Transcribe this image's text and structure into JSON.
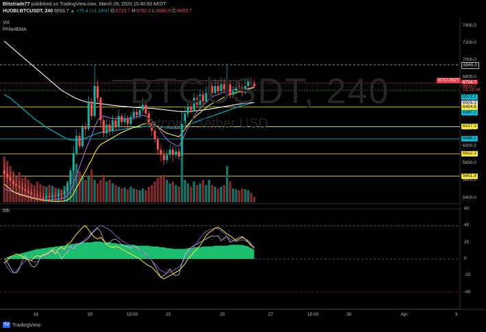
{
  "header": {
    "author": "Blitztrade77",
    "publish_text": "published on TradingView.com, March 26, 2020 15:40:50 AEDT",
    "symbol_line": "HUOBI:BTCUSDT, 240",
    "last_price": "6693.7",
    "change": "▲ +75.4 (+1.14%)",
    "o_label": "O:",
    "o_value": "6723.7",
    "h_label": "H:",
    "h_value": "6762.0",
    "l_label": "L:",
    "l_value": "6680.0",
    "c_label": "C:",
    "c_value": "6693.7"
  },
  "watermark": {
    "symbol": "BTCUSDT, 240",
    "name": "Bitcoin / Tether USD"
  },
  "legend": {
    "volume": "Vol",
    "ema": "Phila4EMA",
    "oscillator": "btb"
  },
  "price_axis": {
    "labels": [
      {
        "value": 7400,
        "text": "7400.0"
      },
      {
        "value": 7200,
        "text": "7200.0"
      },
      {
        "value": 7000,
        "text": "7000.0"
      },
      {
        "value": 6800,
        "text": "6800.0"
      },
      {
        "value": 6200,
        "text": "6200.0"
      },
      {
        "value": 6000,
        "text": "6000.0"
      },
      {
        "value": 5800,
        "text": "5800.0"
      },
      {
        "value": 5600,
        "text": "5600.0"
      },
      {
        "value": 5400,
        "text": "5400.0"
      }
    ],
    "tags": [
      {
        "value": 6945.0,
        "text": "6945.0",
        "bg": "#000000",
        "fg": "#e0e0e0",
        "border": "#bbbbbb"
      },
      {
        "value": 6734.7,
        "text": "6734.7",
        "bg": "#f23645",
        "fg": "#ffffff"
      },
      {
        "value": 6693.7,
        "text": "6693.7",
        "bg": "#000000",
        "fg": "#ff5252"
      },
      {
        "value": 6650,
        "text": "03:19:16",
        "bg": "#000000",
        "fg": "#ff5252"
      },
      {
        "value": 6572.2,
        "text": "6572.2",
        "bg": "#00bcd4",
        "fg": "#000000"
      },
      {
        "value": 6503.3,
        "text": "6503.3",
        "bg": "#e6e6e6",
        "fg": "#000000"
      },
      {
        "value": 6454.6,
        "text": "6454.6",
        "bg": "#ffeb3b",
        "fg": "#000000"
      },
      {
        "value": 6387.7,
        "text": "6387.7",
        "bg": "#00bcd4",
        "fg": "#000000"
      },
      {
        "value": 6227.3,
        "text": "6227.3",
        "bg": "#ffeb3b",
        "fg": "#000000"
      },
      {
        "value": 6086.1,
        "text": "6086.1",
        "bg": "#00bcd4",
        "fg": "#000000"
      },
      {
        "value": 5912.2,
        "text": "5912.2",
        "bg": "#ffeb3b",
        "fg": "#000000"
      },
      {
        "value": 5651.9,
        "text": "5651.9",
        "bg": "#ffeb3b",
        "fg": "#000000"
      }
    ],
    "symbol_tag": {
      "value": 6760,
      "text": "BTCUSDT",
      "bg": "#f23645",
      "fg": "#ffffff"
    }
  },
  "osc_axis": {
    "labels": [
      {
        "value": 60,
        "text": "60"
      },
      {
        "value": 40,
        "text": "40"
      },
      {
        "value": 20,
        "text": "20"
      },
      {
        "value": 0,
        "text": "0"
      },
      {
        "value": -20,
        "text": "-20"
      },
      {
        "value": -40,
        "text": "-40"
      }
    ]
  },
  "time_axis": [
    {
      "bar": 11,
      "text": "18"
    },
    {
      "bar": 29,
      "text": "20"
    },
    {
      "bar": 42,
      "text": "15:00"
    },
    {
      "bar": 55,
      "text": "23"
    },
    {
      "bar": 73,
      "text": "25"
    },
    {
      "bar": 89,
      "text": "27"
    },
    {
      "bar": 102,
      "text": "15:00"
    },
    {
      "bar": 115,
      "text": "30"
    },
    {
      "bar": 133,
      "text": "Apr"
    },
    {
      "bar": 151,
      "text": "3"
    }
  ],
  "footer": {
    "brand": "TradingView"
  },
  "colors": {
    "up": "#26a69a",
    "down": "#ef5350",
    "ema_white": "#ffffff",
    "ema_yellow": "#ffeb3b",
    "ema_cyan": "#00bcd4",
    "ema_purple": "#9c6bd8",
    "osc_fill": "#1fd17a"
  },
  "chart_data": {
    "type": "candlestick",
    "price_range": [
      5350,
      7500
    ],
    "osc_range": [
      -60,
      65
    ],
    "candles": [
      [
        5720,
        5680,
        5800,
        5600,
        5300
      ],
      [
        5680,
        5640,
        5760,
        5580,
        4800
      ],
      [
        5640,
        5600,
        5700,
        5540,
        4200
      ],
      [
        5600,
        5560,
        5680,
        5500,
        3600
      ],
      [
        5560,
        5540,
        5620,
        5480,
        3000
      ],
      [
        5540,
        5520,
        5600,
        5460,
        3500
      ],
      [
        5520,
        5500,
        5580,
        5440,
        2800
      ],
      [
        5500,
        5480,
        5560,
        5420,
        3000
      ],
      [
        5480,
        5460,
        5540,
        5400,
        2600
      ],
      [
        5460,
        5440,
        5520,
        5380,
        2200
      ],
      [
        5440,
        5430,
        5500,
        5380,
        2000
      ],
      [
        5430,
        5420,
        5480,
        5370,
        2400
      ],
      [
        5420,
        5410,
        5470,
        5360,
        2100
      ],
      [
        5410,
        5400,
        5460,
        5350,
        1900
      ],
      [
        5400,
        5420,
        5460,
        5360,
        1800
      ],
      [
        5420,
        5410,
        5460,
        5370,
        2000
      ],
      [
        5410,
        5430,
        5470,
        5370,
        1900
      ],
      [
        5430,
        5420,
        5470,
        5380,
        1700
      ],
      [
        5420,
        5450,
        5490,
        5390,
        1600
      ],
      [
        5450,
        5440,
        5490,
        5400,
        1500
      ],
      [
        5440,
        5480,
        5520,
        5420,
        1900
      ],
      [
        5480,
        5560,
        5600,
        5460,
        2400
      ],
      [
        5560,
        5720,
        5760,
        5540,
        3200
      ],
      [
        5720,
        5920,
        6000,
        5700,
        4200
      ],
      [
        5920,
        6120,
        6200,
        5880,
        4500
      ],
      [
        6120,
        6000,
        6160,
        5960,
        3600
      ],
      [
        6000,
        6220,
        6260,
        5980,
        3000
      ],
      [
        6220,
        6200,
        6280,
        6120,
        2600
      ],
      [
        6200,
        6520,
        6580,
        6180,
        3000
      ],
      [
        6520,
        6350,
        6560,
        6300,
        3800
      ],
      [
        6350,
        6700,
        6940,
        6320,
        2600
      ],
      [
        6700,
        6560,
        6760,
        6500,
        2200
      ],
      [
        6560,
        6300,
        6580,
        6220,
        2600
      ],
      [
        6300,
        6150,
        6340,
        6100,
        3200
      ],
      [
        6150,
        6250,
        6320,
        6100,
        2400
      ],
      [
        6250,
        6180,
        6300,
        6120,
        2600
      ],
      [
        6180,
        6300,
        6360,
        6140,
        2200
      ],
      [
        6300,
        6220,
        6340,
        6180,
        2000
      ],
      [
        6220,
        6350,
        6420,
        6200,
        1800
      ],
      [
        6350,
        6280,
        6380,
        6240,
        1600
      ],
      [
        6280,
        6320,
        6380,
        6240,
        1700
      ],
      [
        6320,
        6260,
        6360,
        6200,
        1500
      ],
      [
        6260,
        6340,
        6400,
        6220,
        1800
      ],
      [
        6340,
        6400,
        6460,
        6300,
        1600
      ],
      [
        6400,
        6360,
        6440,
        6320,
        1500
      ],
      [
        6360,
        6420,
        6480,
        6320,
        1400
      ],
      [
        6420,
        6480,
        6560,
        6380,
        1600
      ],
      [
        6480,
        6380,
        6520,
        6340,
        1400
      ],
      [
        6380,
        6280,
        6420,
        6240,
        1800
      ],
      [
        6280,
        6180,
        6320,
        6120,
        2000
      ],
      [
        6180,
        6080,
        6220,
        6040,
        2400
      ],
      [
        6080,
        5960,
        6120,
        5900,
        2800
      ],
      [
        5960,
        5900,
        6020,
        5820,
        3000
      ],
      [
        5900,
        5840,
        5960,
        5780,
        3200
      ],
      [
        5840,
        5900,
        5960,
        5800,
        2600
      ],
      [
        5900,
        5960,
        6020,
        5860,
        2200
      ],
      [
        5960,
        5900,
        6000,
        5820,
        2400
      ],
      [
        5900,
        5940,
        6000,
        5860,
        2000
      ],
      [
        5940,
        5880,
        5980,
        5840,
        1800
      ],
      [
        5880,
        6260,
        6420,
        5840,
        5200
      ],
      [
        6260,
        6380,
        6460,
        6200,
        2600
      ],
      [
        6380,
        6460,
        6540,
        6340,
        2200
      ],
      [
        6460,
        6420,
        6520,
        6380,
        1800
      ],
      [
        6420,
        6560,
        6620,
        6400,
        2400
      ],
      [
        6560,
        6480,
        6600,
        6440,
        2000
      ],
      [
        6480,
        6600,
        6660,
        6440,
        2200
      ],
      [
        6600,
        6520,
        6640,
        6480,
        2600
      ],
      [
        6520,
        6620,
        6700,
        6500,
        2000
      ],
      [
        6620,
        6700,
        6800,
        6580,
        2600
      ],
      [
        6700,
        6620,
        6740,
        6580,
        2000
      ],
      [
        6620,
        6700,
        6780,
        6600,
        1800
      ],
      [
        6700,
        6640,
        6760,
        6600,
        1600
      ],
      [
        6640,
        6720,
        6800,
        6620,
        1800
      ],
      [
        6720,
        6660,
        6780,
        6620,
        2000
      ],
      [
        6660,
        6720,
        6960,
        6620,
        4200
      ],
      [
        6720,
        6600,
        6760,
        6560,
        2400
      ],
      [
        6600,
        6640,
        6700,
        6560,
        1600
      ],
      [
        6640,
        6700,
        6760,
        6600,
        1500
      ],
      [
        6700,
        6680,
        6740,
        6640,
        1400
      ],
      [
        6680,
        6620,
        6720,
        6580,
        1600
      ],
      [
        6620,
        6700,
        6760,
        6600,
        1500
      ],
      [
        6700,
        6760,
        6800,
        6660,
        1400
      ],
      [
        6760,
        6720,
        6800,
        6680,
        1100
      ],
      [
        6724,
        6694,
        6762,
        6680,
        600
      ]
    ],
    "ema_white": [
      7220,
      7190,
      7160,
      7130,
      7100,
      7070,
      7040,
      7010,
      6980,
      6950,
      6920,
      6890,
      6860,
      6830,
      6800,
      6770,
      6740,
      6710,
      6680,
      6650,
      6630,
      6610,
      6590,
      6570,
      6555,
      6540,
      6528,
      6516,
      6510,
      6505,
      6500,
      6498,
      6494,
      6490,
      6485,
      6480,
      6476,
      6472,
      6468,
      6465,
      6462,
      6458,
      6455,
      6452,
      6450,
      6448,
      6446,
      6444,
      6442,
      6440,
      6436,
      6432,
      6428,
      6424,
      6420,
      6416,
      6412,
      6408,
      6404,
      6402,
      6402,
      6404,
      6406,
      6410,
      6414,
      6418,
      6422,
      6426,
      6430,
      6436,
      6442,
      6448,
      6454,
      6460,
      6466,
      6472,
      6478,
      6484,
      6490,
      6494,
      6498,
      6502,
      6505,
      6508
    ],
    "ema_yellow": [
      5560,
      5530,
      5500,
      5475,
      5455,
      5440,
      5430,
      5420,
      5410,
      5400,
      5392,
      5385,
      5378,
      5372,
      5368,
      5365,
      5362,
      5360,
      5360,
      5362,
      5366,
      5375,
      5400,
      5450,
      5520,
      5580,
      5650,
      5710,
      5780,
      5840,
      5920,
      5980,
      6020,
      6040,
      6060,
      6080,
      6100,
      6120,
      6140,
      6160,
      6175,
      6190,
      6205,
      6220,
      6230,
      6240,
      6255,
      6262,
      6266,
      6260,
      6250,
      6230,
      6200,
      6170,
      6150,
      6140,
      6130,
      6120,
      6110,
      6150,
      6200,
      6250,
      6290,
      6330,
      6360,
      6390,
      6420,
      6445,
      6475,
      6495,
      6515,
      6530,
      6550,
      6570,
      6590,
      6600,
      6610,
      6622,
      6632,
      6640,
      6650,
      6662,
      6672,
      6680
    ],
    "ema_cyan": [
      6600,
      6580,
      6560,
      6530,
      6500,
      6470,
      6440,
      6410,
      6380,
      6350,
      6320,
      6295,
      6270,
      6245,
      6220,
      6200,
      6180,
      6160,
      6140,
      6120,
      6100,
      6085,
      6075,
      6070,
      6070,
      6075,
      6085,
      6095,
      6110,
      6125,
      6140,
      6150,
      6160,
      6165,
      6170,
      6175,
      6180,
      6185,
      6190,
      6195,
      6200,
      6205,
      6210,
      6215,
      6218,
      6222,
      6226,
      6230,
      6232,
      6232,
      6230,
      6226,
      6222,
      6218,
      6214,
      6212,
      6210,
      6210,
      6210,
      6220,
      6235,
      6250,
      6262,
      6275,
      6288,
      6300,
      6312,
      6325,
      6338,
      6350,
      6362,
      6375,
      6388,
      6400,
      6412,
      6425,
      6438,
      6450,
      6462,
      6472,
      6482,
      6492,
      6500,
      6508
    ],
    "ema_purple": [
      5500,
      5490,
      5480,
      5470,
      5460,
      5450,
      5440,
      5430,
      5420,
      5410,
      5400,
      5395,
      5390,
      5385,
      5380,
      5378,
      5378,
      5380,
      5385,
      5392,
      5405,
      5430,
      5480,
      5560,
      5660,
      5760,
      5860,
      5950,
      6040,
      6120,
      6220,
      6300,
      6340,
      6350,
      6340,
      6330,
      6320,
      6320,
      6320,
      6320,
      6322,
      6324,
      6326,
      6330,
      6340,
      6350,
      6360,
      6350,
      6330,
      6300,
      6260,
      6220,
      6170,
      6120,
      6080,
      6050,
      6030,
      6010,
      6000,
      6060,
      6140,
      6220,
      6290,
      6350,
      6400,
      6440,
      6480,
      6510,
      6545,
      6570,
      6590,
      6600,
      6615,
      6630,
      6645,
      6650,
      6655,
      6660,
      6660,
      6660,
      6662,
      6670,
      6680,
      6690
    ],
    "osc_fill": [
      0,
      2,
      3,
      4,
      5,
      6,
      7,
      8,
      9,
      10,
      11,
      12,
      12,
      13,
      13,
      14,
      14,
      15,
      15,
      16,
      16,
      17,
      18,
      18,
      19,
      19,
      20,
      20,
      20,
      20,
      21,
      21,
      21,
      20,
      20,
      20,
      19,
      19,
      18,
      18,
      17,
      17,
      17,
      17,
      16,
      16,
      16,
      16,
      16,
      15,
      15,
      15,
      14,
      14,
      13,
      13,
      12,
      12,
      12,
      12,
      12,
      13,
      13,
      14,
      14,
      14,
      15,
      15,
      15,
      15,
      16,
      16,
      16,
      16,
      16,
      17,
      17,
      17,
      17,
      17,
      16,
      15,
      13,
      11
    ],
    "osc_white": [
      0,
      -4,
      -10,
      -16,
      -17,
      -12,
      -2,
      4,
      -2,
      -8,
      -10,
      -6,
      2,
      5,
      4,
      8,
      12,
      10,
      7,
      0,
      5,
      8,
      15,
      12,
      17,
      18,
      20,
      22,
      25,
      30,
      34,
      37,
      33,
      23,
      18,
      20,
      23,
      24,
      21,
      17,
      16,
      14,
      13,
      15,
      14,
      10,
      8,
      6,
      2,
      -2,
      -8,
      -15,
      -22,
      -20,
      -17,
      -12,
      -18,
      -20,
      -19,
      -5,
      5,
      10,
      14,
      16,
      18,
      20,
      22,
      24,
      26,
      28,
      27,
      28,
      22,
      25,
      27,
      20,
      22,
      24,
      26,
      27,
      24,
      22,
      18,
      12
    ],
    "osc_purple": [
      -3,
      -10,
      -15,
      -17,
      -15,
      -10,
      -6,
      -2,
      0,
      -2,
      -4,
      -3,
      0,
      2,
      4,
      6,
      8,
      10,
      10,
      10,
      10,
      11,
      13,
      15,
      17,
      19,
      21,
      24,
      27,
      31,
      35,
      38,
      40,
      39,
      37,
      35,
      32,
      28,
      25,
      22,
      20,
      18,
      16,
      14,
      12,
      10,
      8,
      5,
      2,
      -2,
      -6,
      -10,
      -14,
      -16,
      -17,
      -16,
      -14,
      -12,
      -10,
      -5,
      0,
      5,
      10,
      15,
      20,
      25,
      30,
      33,
      35,
      36,
      37,
      36,
      34,
      31,
      27,
      24,
      22,
      21,
      22,
      23,
      22,
      20,
      17,
      13
    ],
    "osc_yellow": [
      -5,
      -2,
      3,
      4,
      6,
      5,
      3,
      0,
      -1,
      -2,
      2,
      4,
      3,
      5,
      6,
      8,
      10,
      6,
      12,
      14,
      12,
      18,
      20,
      25,
      30,
      34,
      38,
      40,
      35,
      30,
      26,
      24,
      26,
      22,
      18,
      15,
      14,
      15,
      14,
      12,
      10,
      8,
      6,
      4,
      2,
      0,
      -3,
      -6,
      -8,
      -10,
      -14,
      -18,
      -22,
      -24,
      -22,
      -20,
      -18,
      -16,
      -14,
      -10,
      -6,
      0,
      4,
      8,
      12,
      16,
      22,
      28,
      32,
      34,
      37,
      38,
      36,
      33,
      30,
      28,
      25,
      22,
      24,
      26,
      24,
      20,
      16,
      14
    ]
  }
}
